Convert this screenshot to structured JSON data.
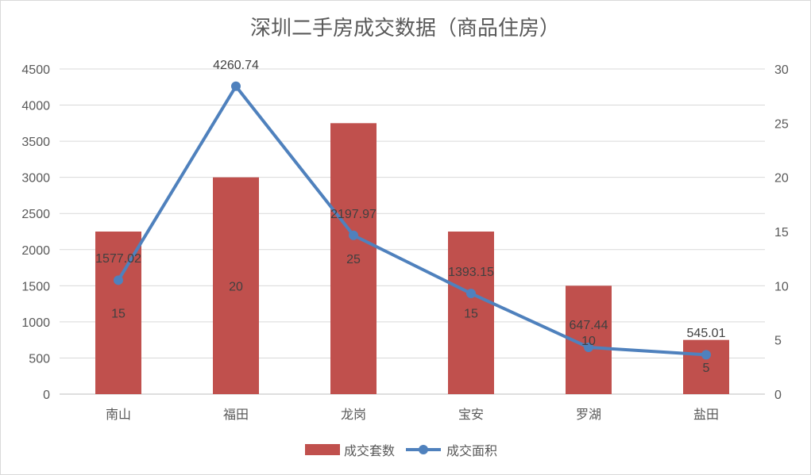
{
  "chart_data": {
    "type": "bar",
    "title": "深圳二手房成交数据（商品住房）",
    "categories": [
      "南山",
      "福田",
      "龙岗",
      "宝安",
      "罗湖",
      "盐田"
    ],
    "series": [
      {
        "name": "成交套数",
        "type": "bar",
        "axis": "right",
        "color": "#c0504d",
        "values": [
          15,
          20,
          25,
          15,
          10,
          5
        ],
        "labels": [
          "15",
          "20",
          "25",
          "15",
          "10",
          "5"
        ]
      },
      {
        "name": "成交面积",
        "type": "line",
        "axis": "left",
        "color": "#4f81bd",
        "values": [
          1577.02,
          4260.74,
          2197.97,
          1393.15,
          647.44,
          545.01
        ],
        "labels": [
          "1577.02",
          "4260.74",
          "2197.97",
          "1393.15",
          "647.44",
          "545.01"
        ]
      }
    ],
    "y_left": {
      "range": [
        0,
        4500
      ],
      "ticks": [
        "0",
        "500",
        "1000",
        "1500",
        "2000",
        "2500",
        "3000",
        "3500",
        "4000",
        "4500"
      ]
    },
    "y_right": {
      "range": [
        0,
        30
      ],
      "ticks": [
        "0",
        "5",
        "10",
        "15",
        "20",
        "25",
        "30"
      ]
    },
    "grid": true,
    "legend_position": "bottom"
  }
}
